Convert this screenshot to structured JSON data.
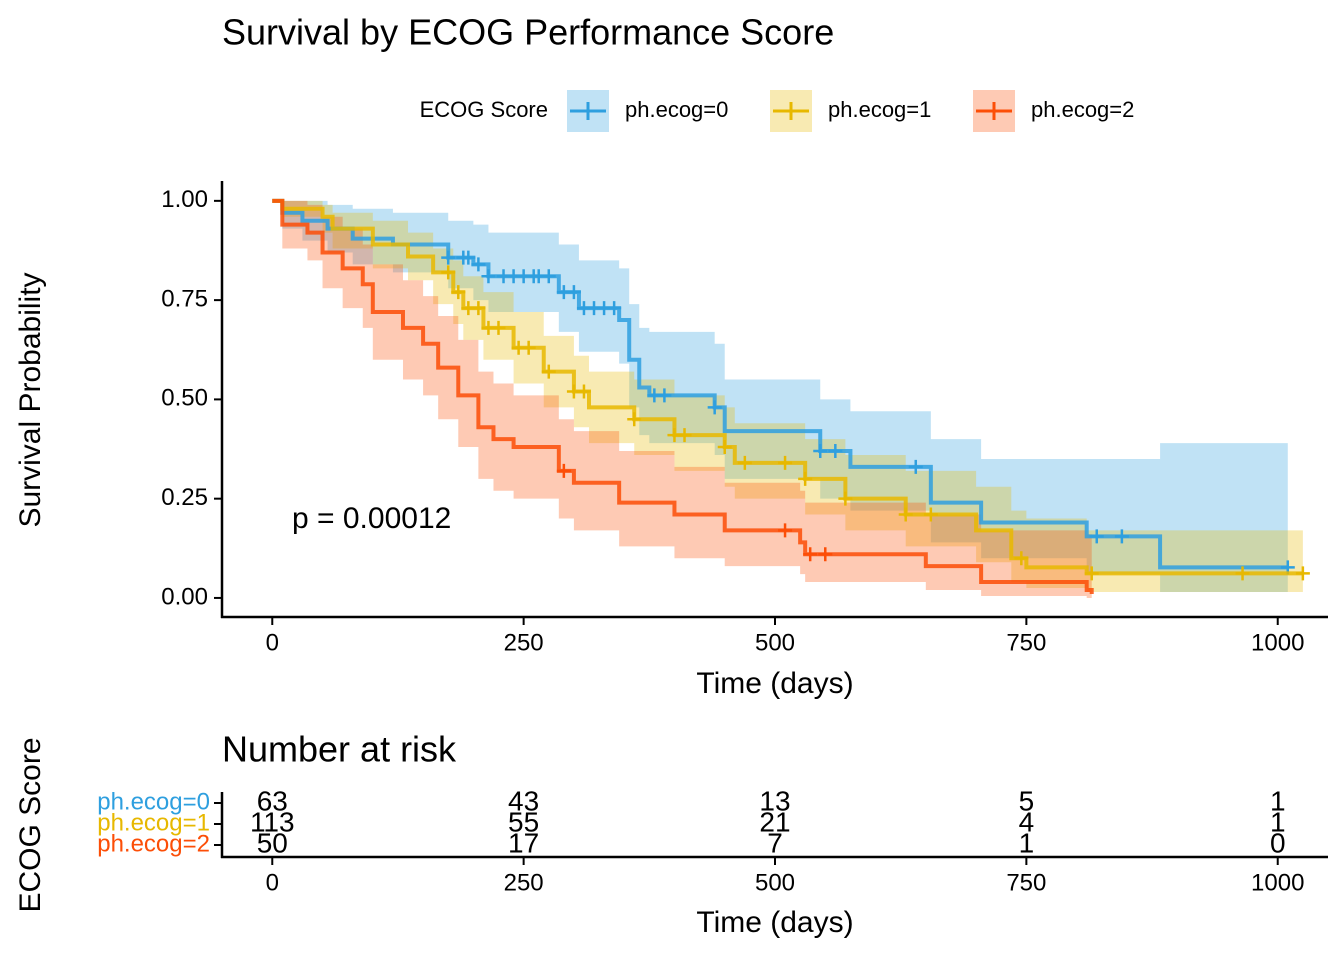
{
  "chart_data": [
    {
      "type": "survival",
      "title": "Survival by ECOG Performance Score",
      "xlabel": "Time (days)",
      "ylabel": "Survival Probability",
      "legend_title": "ECOG Score",
      "legend_position": "top",
      "annotation": "p = 0.00012",
      "xlim": [
        -50,
        1050
      ],
      "ylim": [
        -0.048,
        1.05
      ],
      "xticks": [
        0,
        250,
        500,
        750,
        1000
      ],
      "yticks": [
        {
          "value": 0,
          "label": "0.00"
        },
        {
          "value": 0.25,
          "label": "0.25"
        },
        {
          "value": 0.5,
          "label": "0.50"
        },
        {
          "value": 0.75,
          "label": "0.75"
        },
        {
          "value": 1,
          "label": "1.00"
        }
      ],
      "series": [
        {
          "name": "ph.ecog=0",
          "color": "#2E9FDF",
          "time": [
            0,
            10,
            30,
            55,
            80,
            120,
            175,
            200,
            215,
            285,
            305,
            345,
            355,
            365,
            375,
            440,
            450,
            545,
            575,
            655,
            705,
            810,
            883,
            1010
          ],
          "survival": [
            1,
            0.97,
            0.95,
            0.93,
            0.905,
            0.89,
            0.857,
            0.84,
            0.81,
            0.77,
            0.73,
            0.7,
            0.6,
            0.53,
            0.51,
            0.48,
            0.42,
            0.37,
            0.33,
            0.24,
            0.19,
            0.155,
            0.077,
            0.077
          ],
          "lower": [
            1,
            0.93,
            0.9,
            0.87,
            0.84,
            0.82,
            0.78,
            0.75,
            0.72,
            0.67,
            0.62,
            0.59,
            0.48,
            0.41,
            0.39,
            0.36,
            0.3,
            0.25,
            0.22,
            0.14,
            0.1,
            0.06,
            0.015,
            0.015
          ],
          "upper": [
            1,
            1,
            1,
            0.99,
            0.98,
            0.97,
            0.95,
            0.94,
            0.92,
            0.89,
            0.85,
            0.83,
            0.74,
            0.68,
            0.67,
            0.64,
            0.55,
            0.5,
            0.47,
            0.4,
            0.35,
            0.35,
            0.39,
            0.39
          ],
          "censor_time": [
            175,
            190,
            195,
            205,
            215,
            230,
            240,
            250,
            260,
            265,
            275,
            290,
            300,
            310,
            320,
            330,
            340,
            380,
            390,
            440,
            545,
            560,
            640,
            820,
            845,
            1010
          ],
          "censor_survival": [
            0.857,
            0.857,
            0.857,
            0.84,
            0.81,
            0.81,
            0.81,
            0.81,
            0.81,
            0.81,
            0.81,
            0.77,
            0.77,
            0.73,
            0.73,
            0.73,
            0.73,
            0.51,
            0.51,
            0.48,
            0.37,
            0.37,
            0.33,
            0.155,
            0.155,
            0.077
          ]
        },
        {
          "name": "ph.ecog=1",
          "color": "#E7B800",
          "time": [
            0,
            10,
            50,
            60,
            100,
            135,
            160,
            180,
            190,
            210,
            240,
            270,
            300,
            315,
            360,
            400,
            450,
            460,
            530,
            570,
            630,
            700,
            735,
            750,
            810,
            1025
          ],
          "survival": [
            1,
            0.98,
            0.96,
            0.93,
            0.89,
            0.86,
            0.82,
            0.77,
            0.73,
            0.68,
            0.63,
            0.57,
            0.52,
            0.48,
            0.45,
            0.41,
            0.38,
            0.34,
            0.3,
            0.25,
            0.21,
            0.17,
            0.1,
            0.077,
            0.062,
            0.062
          ],
          "lower": [
            1,
            0.96,
            0.92,
            0.88,
            0.83,
            0.8,
            0.74,
            0.69,
            0.65,
            0.6,
            0.54,
            0.48,
            0.43,
            0.39,
            0.36,
            0.32,
            0.28,
            0.25,
            0.21,
            0.17,
            0.13,
            0.09,
            0.04,
            0.025,
            0.015,
            0.015
          ],
          "upper": [
            1,
            1,
            0.99,
            0.97,
            0.95,
            0.92,
            0.88,
            0.85,
            0.81,
            0.77,
            0.72,
            0.66,
            0.61,
            0.57,
            0.55,
            0.51,
            0.48,
            0.44,
            0.4,
            0.36,
            0.32,
            0.28,
            0.22,
            0.2,
            0.17,
            0.17
          ],
          "censor_time": [
            175,
            185,
            195,
            205,
            215,
            225,
            245,
            255,
            275,
            300,
            310,
            360,
            400,
            410,
            450,
            470,
            510,
            530,
            570,
            630,
            655,
            745,
            815,
            965,
            1025
          ],
          "censor_survival": [
            0.82,
            0.77,
            0.73,
            0.73,
            0.68,
            0.68,
            0.63,
            0.63,
            0.57,
            0.52,
            0.52,
            0.45,
            0.41,
            0.41,
            0.38,
            0.34,
            0.34,
            0.3,
            0.25,
            0.21,
            0.21,
            0.1,
            0.062,
            0.062,
            0.062
          ]
        },
        {
          "name": "ph.ecog=2",
          "color": "#FC4E07",
          "time": [
            0,
            10,
            35,
            50,
            70,
            90,
            100,
            130,
            150,
            165,
            185,
            205,
            220,
            240,
            285,
            300,
            345,
            400,
            450,
            525,
            530,
            650,
            705,
            810,
            815
          ],
          "survival": [
            1,
            0.94,
            0.92,
            0.87,
            0.83,
            0.79,
            0.72,
            0.68,
            0.64,
            0.58,
            0.51,
            0.43,
            0.4,
            0.38,
            0.32,
            0.29,
            0.24,
            0.21,
            0.17,
            0.14,
            0.11,
            0.08,
            0.04,
            0.02,
            0.01
          ],
          "lower": [
            1,
            0.88,
            0.85,
            0.78,
            0.73,
            0.68,
            0.6,
            0.55,
            0.51,
            0.45,
            0.38,
            0.3,
            0.27,
            0.25,
            0.2,
            0.17,
            0.13,
            0.1,
            0.08,
            0.06,
            0.04,
            0.02,
            0.005,
            0,
            0
          ],
          "upper": [
            1,
            1,
            0.99,
            0.96,
            0.93,
            0.89,
            0.84,
            0.8,
            0.76,
            0.71,
            0.65,
            0.57,
            0.54,
            0.51,
            0.45,
            0.42,
            0.37,
            0.33,
            0.29,
            0.27,
            0.24,
            0.21,
            0.17,
            0.16,
            0.16
          ],
          "censor_time": [
            290,
            510,
            535,
            550
          ],
          "censor_survival": [
            0.32,
            0.17,
            0.11,
            0.11
          ]
        }
      ]
    },
    {
      "type": "risk-table",
      "title": "Number at risk",
      "xlabel": "Time (days)",
      "ylabel": "ECOG Score",
      "xlim": [
        -50,
        1050
      ],
      "xticks": [
        0,
        250,
        500,
        750,
        1000
      ],
      "series": [
        {
          "name": "ph.ecog=0",
          "color": "#2E9FDF",
          "values": [
            63,
            43,
            13,
            5,
            1
          ]
        },
        {
          "name": "ph.ecog=1",
          "color": "#E7B800",
          "values": [
            113,
            55,
            21,
            4,
            1
          ]
        },
        {
          "name": "ph.ecog=2",
          "color": "#FC4E07",
          "values": [
            50,
            17,
            7,
            1,
            0
          ]
        }
      ]
    }
  ]
}
